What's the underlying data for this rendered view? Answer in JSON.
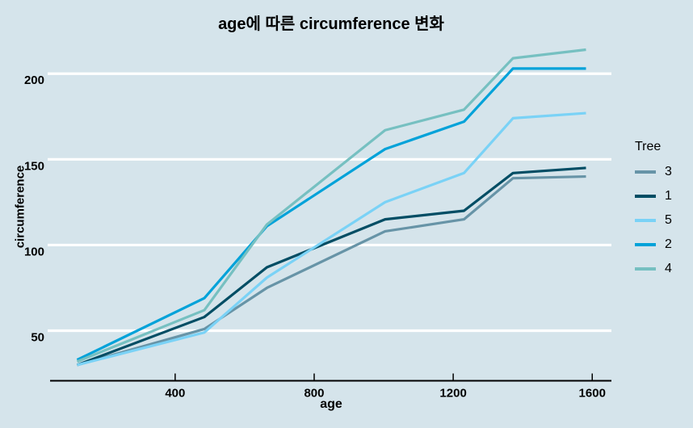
{
  "title": "age에 따른 circumference 변화",
  "colors": {
    "background": "#d5e4eb",
    "gridline": "#ffffff",
    "axis_line": "#000000",
    "text": "#000000"
  },
  "legend": {
    "title": "Tree",
    "position": "right",
    "entries": [
      "3",
      "1",
      "5",
      "2",
      "4"
    ]
  },
  "chart_data": {
    "type": "line",
    "title": "age에 따른 circumference 변화",
    "xlabel": "age",
    "ylabel": "circumference",
    "x": [
      118,
      484,
      664,
      1004,
      1231,
      1372,
      1582
    ],
    "series": [
      {
        "name": "3",
        "color": "#6794a7",
        "values": [
          30,
          51,
          75,
          108,
          115,
          139,
          140
        ]
      },
      {
        "name": "1",
        "color": "#014d64",
        "values": [
          30,
          58,
          87,
          115,
          120,
          142,
          145
        ]
      },
      {
        "name": "5",
        "color": "#7ad2f6",
        "values": [
          30,
          49,
          81,
          125,
          142,
          174,
          177
        ]
      },
      {
        "name": "2",
        "color": "#01a2d9",
        "values": [
          33,
          69,
          111,
          156,
          172,
          203,
          203
        ]
      },
      {
        "name": "4",
        "color": "#76c0c1",
        "values": [
          32,
          62,
          112,
          167,
          179,
          209,
          214
        ]
      }
    ],
    "x_ticks": [
      400,
      800,
      1200,
      1600
    ],
    "y_ticks": [
      50,
      100,
      150,
      200
    ],
    "xlim": [
      44.8,
      1655.2
    ],
    "ylim": [
      20.8,
      223.2
    ],
    "grid": "horizontal-major-only",
    "legend_title": "Tree",
    "legend_position": "right"
  }
}
